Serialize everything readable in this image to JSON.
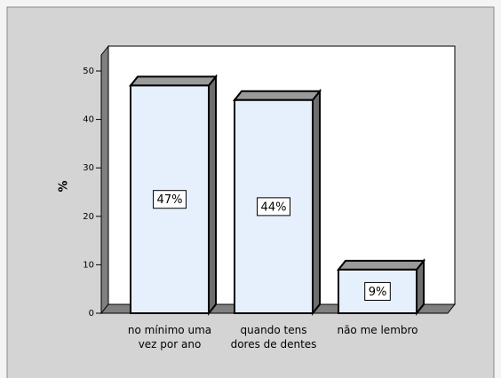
{
  "chart_data": {
    "type": "bar",
    "categories": [
      "no mínimo uma\nvez por ano",
      "quando tens\ndores de dentes",
      "não me lembro"
    ],
    "values": [
      47,
      44,
      9
    ],
    "value_labels": [
      "47%",
      "44%",
      "9%"
    ],
    "y_label": "%",
    "color": "#e6f0fc",
    "ylim": [
      0,
      50
    ],
    "yticks": [
      0,
      10,
      20,
      30,
      40,
      50
    ]
  }
}
